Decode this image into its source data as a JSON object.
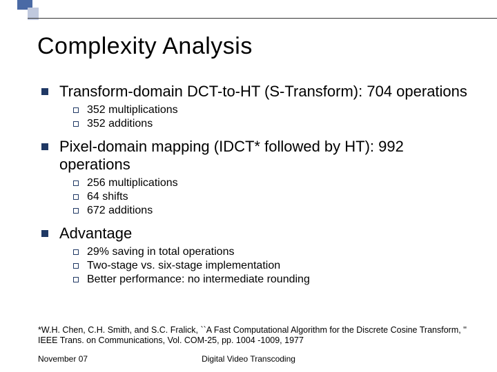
{
  "decor": {
    "sq1_color": "#4a6aa5",
    "sq2_color": "#c0c9de",
    "line_color": "#333333"
  },
  "title": "Complexity Analysis",
  "bullets": [
    {
      "text": "Transform-domain DCT-to-HT (S-Transform): 704 operations",
      "sub": [
        "352 multiplications",
        "352 additions"
      ]
    },
    {
      "text": "Pixel-domain mapping (IDCT* followed by HT): 992 operations",
      "sub": [
        "256 multiplications",
        "64 shifts",
        "672 additions"
      ]
    },
    {
      "text": "Advantage",
      "sub": [
        "29% saving in total operations",
        "Two-stage vs. six-stage implementation",
        "Better performance: no intermediate rounding"
      ]
    }
  ],
  "footnote": "*W.H. Chen, C.H. Smith, and S.C. Fralick, ``A Fast Computational Algorithm for the Discrete Cosine Transform, '' IEEE Trans. on Communications, Vol. COM-25, pp. 1004 -1009, 1977",
  "footer": {
    "left": "November 07",
    "center": "Digital Video Transcoding"
  },
  "style": {
    "title_fontsize": 34,
    "l1_fontsize": 22,
    "l2_fontsize": 16,
    "footnote_fontsize": 12.5,
    "footer_fontsize": 12,
    "bullet_color": "#1f3864",
    "text_color": "#000000",
    "background_color": "#ffffff"
  }
}
